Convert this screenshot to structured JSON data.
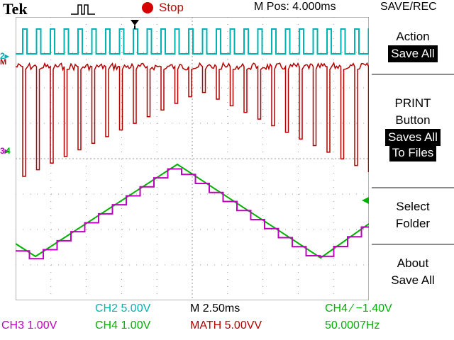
{
  "header": {
    "brand": "Tek",
    "run_state": "Stop",
    "mpos": "M Pos: 4.000ms",
    "menu_title": "SAVE/REC"
  },
  "menu": {
    "action_title": "Action",
    "action_value": "Save All",
    "print_line1": "PRINT",
    "print_line2": "Button",
    "print_value1": "Saves All",
    "print_value2": "To Files",
    "select_line1": "Select",
    "select_line2": "Folder",
    "about_line1": "About",
    "about_line2": "Save All"
  },
  "status": {
    "ch2": "CH2  5.00V",
    "timebase": "M 2.50ms",
    "trigger": "CH4 ⁄ −1.40V",
    "ch3": "CH3  1.00V",
    "ch4": "CH4  1.00V",
    "math": "MATH 5.00VV",
    "freq": "50.0007Hz"
  },
  "markers": {
    "ch2_marker": "2▸",
    "math_marker": "M",
    "ch3_marker": "3▸",
    "ch4_marker": "4"
  },
  "colors": {
    "ch2": "#00b3b3",
    "math": "#b40000",
    "ch3": "#c000c0",
    "ch4": "#00b000",
    "run": "#d40000"
  }
}
